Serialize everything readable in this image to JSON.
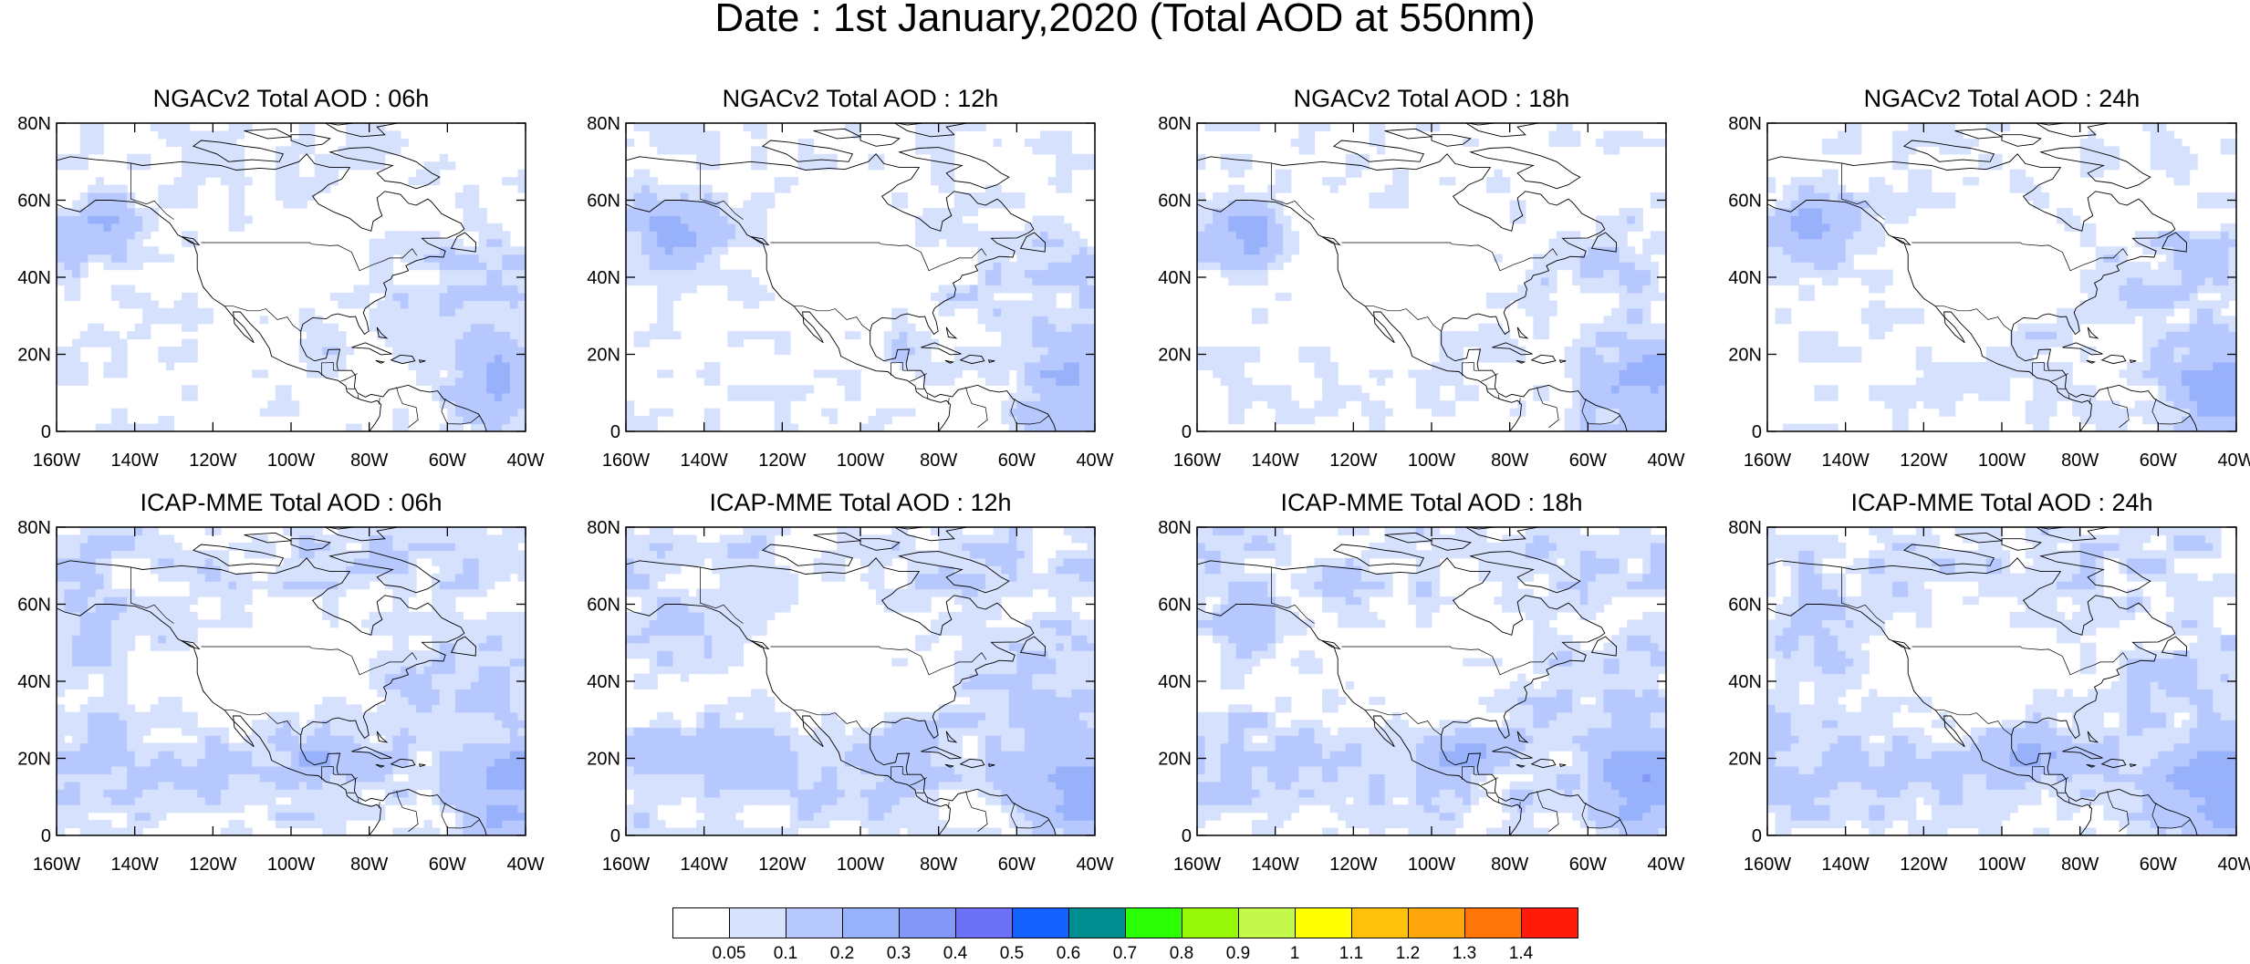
{
  "title": "Date : 1st January,2020 (Total AOD at 550nm)",
  "panels": [
    {
      "title": "NGACv2 Total AOD : 06h",
      "model": "NGACv2",
      "hour": "06h"
    },
    {
      "title": "NGACv2 Total AOD : 12h",
      "model": "NGACv2",
      "hour": "12h"
    },
    {
      "title": "NGACv2 Total AOD : 18h",
      "model": "NGACv2",
      "hour": "18h"
    },
    {
      "title": "NGACv2 Total AOD : 24h",
      "model": "NGACv2",
      "hour": "24h"
    },
    {
      "title": "ICAP-MME Total AOD : 06h",
      "model": "ICAP-MME",
      "hour": "06h"
    },
    {
      "title": "ICAP-MME Total AOD : 12h",
      "model": "ICAP-MME",
      "hour": "12h"
    },
    {
      "title": "ICAP-MME Total AOD : 18h",
      "model": "ICAP-MME",
      "hour": "18h"
    },
    {
      "title": "ICAP-MME Total AOD : 24h",
      "model": "ICAP-MME",
      "hour": "24h"
    }
  ],
  "axes": {
    "lon_labels": [
      "160W",
      "140W",
      "120W",
      "100W",
      "80W",
      "60W",
      "40W"
    ],
    "lat_labels": [
      "0",
      "20N",
      "40N",
      "60N",
      "80N"
    ],
    "lon_range": [
      -160,
      -40
    ],
    "lat_range": [
      0,
      80
    ]
  },
  "colorbar": {
    "labels": [
      "0.05",
      "0.1",
      "0.2",
      "0.3",
      "0.4",
      "0.5",
      "0.6",
      "0.7",
      "0.8",
      "0.9",
      "1",
      "1.1",
      "1.2",
      "1.3",
      "1.4"
    ],
    "colors": [
      "#ffffff",
      "#d6e1fe",
      "#b6c8fd",
      "#98b1fb",
      "#8397f9",
      "#6d71f7",
      "#1461fd",
      "#008f91",
      "#2bff06",
      "#97f708",
      "#c4f84a",
      "#ffff00",
      "#ffc10b",
      "#ffa60c",
      "#ff7508",
      "#ff1a0a"
    ]
  }
}
